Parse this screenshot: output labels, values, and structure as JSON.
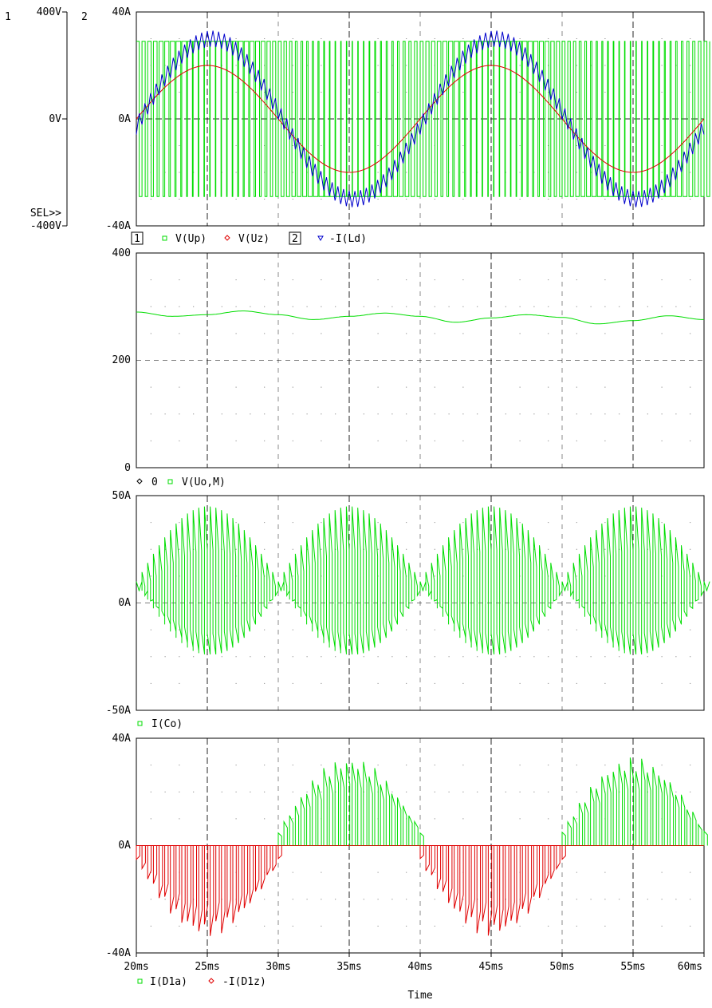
{
  "x_axis": {
    "label": "Time",
    "unit": "ms",
    "range": [
      20,
      60
    ],
    "ticks": [
      "20ms",
      "25ms",
      "30ms",
      "35ms",
      "40ms",
      "45ms",
      "50ms",
      "55ms",
      "60ms"
    ]
  },
  "colors": {
    "green": "#00dd00",
    "red": "#e00000",
    "blue": "#0000cc",
    "grid": "#000000"
  },
  "chart_data": [
    {
      "type": "line",
      "axes": [
        {
          "id": "1",
          "range": [
            -400,
            400
          ],
          "unit": "V",
          "ticks": [
            "400V",
            "0V",
            "-400V"
          ],
          "selected_label": "SEL>>"
        },
        {
          "id": "2",
          "range": [
            -40,
            40
          ],
          "unit": "A",
          "ticks": [
            "40A",
            "0A",
            "-40A"
          ]
        }
      ],
      "legend": [
        {
          "axis": "1",
          "marker": "square",
          "color": "#00dd00",
          "name": "V(Up)"
        },
        {
          "axis": "1",
          "marker": "diamond",
          "color": "#e00000",
          "name": "V(Uz)"
        },
        {
          "axis": "2",
          "marker": "triangle",
          "color": "#0000cc",
          "name": "-I(Ld)"
        }
      ],
      "series": [
        {
          "name": "V(Up)",
          "axis": "1",
          "style": "pwm",
          "amplitude_V": 290,
          "switching_period_ms": 0.4,
          "x_range": [
            20,
            60
          ]
        },
        {
          "name": "V(Uz)",
          "axis": "1",
          "style": "sine",
          "amplitude_V": 200,
          "frequency_Hz": 50,
          "x": [
            20,
            25,
            30,
            35,
            40,
            45,
            50,
            55,
            60
          ],
          "y": [
            0,
            200,
            0,
            -200,
            0,
            200,
            0,
            -200,
            0
          ]
        },
        {
          "name": "-I(Ld)",
          "axis": "2",
          "style": "sine_ripple",
          "amplitude_A": 30,
          "ripple_A": 3,
          "frequency_Hz": 50,
          "x": [
            20,
            25,
            30,
            35,
            40,
            45,
            50,
            55,
            60
          ],
          "y": [
            0,
            30,
            0,
            -30,
            0,
            30,
            0,
            -30,
            0
          ]
        }
      ]
    },
    {
      "type": "line",
      "axes": [
        {
          "range": [
            0,
            400
          ],
          "ticks": [
            "400",
            "200",
            "0"
          ]
        }
      ],
      "legend": [
        {
          "marker": "diamond",
          "color": "#000000",
          "name": "0"
        },
        {
          "marker": "square",
          "color": "#00dd00",
          "name": "V(Uo,M)"
        }
      ],
      "series": [
        {
          "name": "V(Uo,M)",
          "x": [
            20,
            22.5,
            25,
            27.5,
            30,
            32.5,
            35,
            37.5,
            40,
            42.5,
            45,
            47.5,
            50,
            52.5,
            55,
            57.5,
            60
          ],
          "y": [
            290,
            282,
            285,
            292,
            285,
            276,
            282,
            288,
            282,
            271,
            279,
            285,
            280,
            268,
            274,
            283,
            276
          ]
        }
      ]
    },
    {
      "type": "line",
      "axes": [
        {
          "range": [
            -50,
            50
          ],
          "ticks": [
            "50A",
            "0A",
            "-50A"
          ]
        }
      ],
      "legend": [
        {
          "marker": "square",
          "color": "#00dd00",
          "name": "I(Co)"
        }
      ],
      "series": [
        {
          "name": "I(Co)",
          "style": "pwm_envelope",
          "peak_positive_A": 45,
          "peak_negative_A": -24,
          "min_envelope_A": 10,
          "envelope_period_ms": 10,
          "x_range": [
            20,
            60
          ]
        }
      ]
    },
    {
      "type": "line",
      "axes": [
        {
          "range": [
            -40,
            40
          ],
          "ticks": [
            "40A",
            "0A",
            "-40A"
          ]
        }
      ],
      "legend": [
        {
          "marker": "square",
          "color": "#00dd00",
          "name": "I(D1a)"
        },
        {
          "marker": "diamond",
          "color": "#e00000",
          "name": "-I(D1z)"
        }
      ],
      "series": [
        {
          "name": "I(D1a)",
          "style": "pulses",
          "peak_A": 33,
          "active_intervals_ms": [
            [
              30,
              40
            ],
            [
              50,
              60
            ]
          ]
        },
        {
          "name": "-I(D1z)",
          "style": "pulses",
          "peak_A": -34,
          "active_intervals_ms": [
            [
              20,
              30
            ],
            [
              40,
              50
            ]
          ]
        }
      ]
    }
  ]
}
